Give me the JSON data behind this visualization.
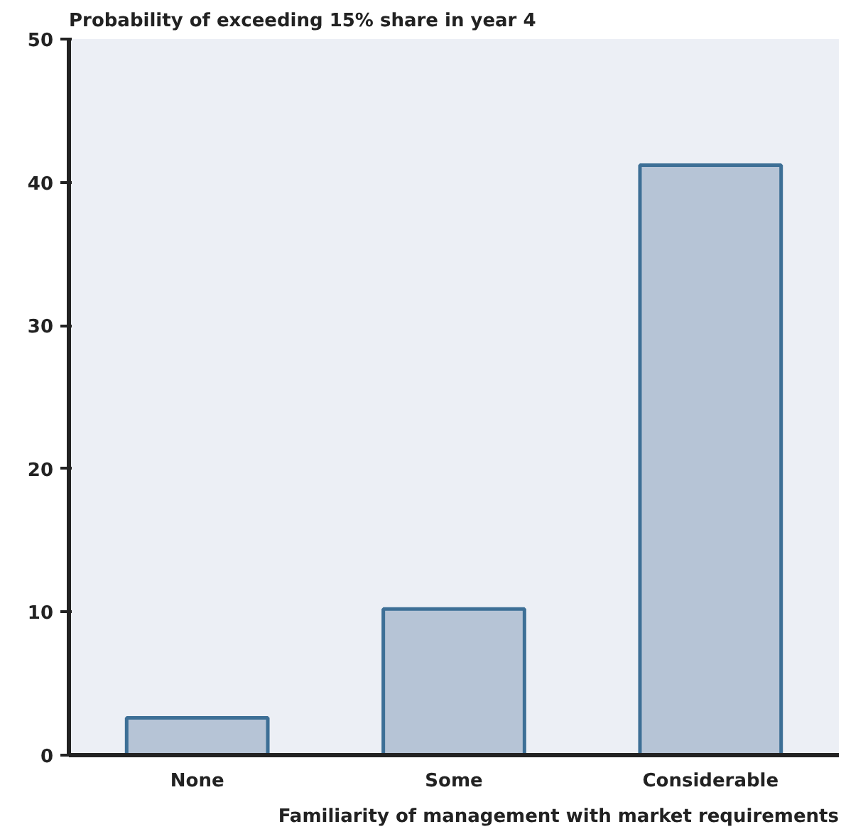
{
  "chart_data": {
    "type": "bar",
    "title": "Probability of exceeding 15% share in year 4",
    "xlabel": "Familiarity of management with market requirements",
    "categories": [
      "None",
      "Some",
      "Considerable"
    ],
    "values": [
      2.6,
      10.2,
      41.2
    ],
    "color": "#b6c4d6",
    "ylim": [
      0,
      50
    ],
    "yticks": [
      0,
      10,
      20,
      30,
      40,
      50
    ],
    "grid": false
  }
}
